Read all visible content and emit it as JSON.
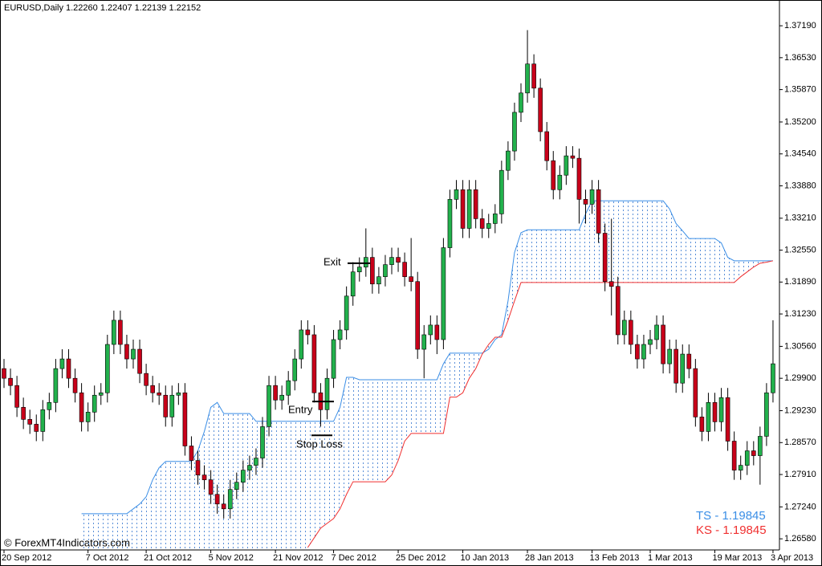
{
  "chart_data": {
    "type": "candlestick",
    "title": "EURUSD,Daily  1.22260 1.22407 1.22139 1.22152",
    "watermark": "© ForexMT4Indicators.com",
    "x": [
      "20 Sep 2012",
      null,
      null,
      null,
      null,
      null,
      null,
      null,
      null,
      null,
      null,
      null,
      null,
      "7 Oct 2012",
      null,
      null,
      null,
      null,
      null,
      null,
      null,
      null,
      "21 Oct 2012",
      null,
      null,
      null,
      null,
      null,
      null,
      null,
      null,
      null,
      "5 Nov 2012",
      null,
      null,
      null,
      null,
      null,
      null,
      null,
      null,
      null,
      "21 Nov 2012",
      null,
      null,
      null,
      null,
      null,
      null,
      null,
      null,
      "7 Dec 2012",
      null,
      null,
      null,
      null,
      null,
      null,
      null,
      null,
      null,
      "25 Dec 2012",
      null,
      null,
      null,
      null,
      null,
      null,
      null,
      null,
      null,
      "10 Jan 2013",
      null,
      null,
      null,
      null,
      null,
      null,
      null,
      null,
      null,
      "28 Jan 2013",
      null,
      null,
      null,
      null,
      null,
      null,
      null,
      null,
      null,
      "13 Feb 2013",
      null,
      null,
      null,
      null,
      null,
      null,
      null,
      null,
      "1 Mar 2013",
      null,
      null,
      null,
      null,
      null,
      null,
      null,
      null,
      null,
      "19 Mar 2013",
      null,
      null,
      null,
      null,
      null,
      null,
      null,
      null,
      "3 Apr 2013"
    ],
    "open": [
      1.301,
      1.299,
      1.2975,
      1.293,
      1.2905,
      1.2895,
      1.288,
      1.2925,
      1.294,
      1.301,
      1.303,
      1.299,
      1.296,
      1.29,
      1.292,
      1.2955,
      1.296,
      1.306,
      1.311,
      1.306,
      1.303,
      1.305,
      1.3,
      1.2975,
      1.296,
      1.2955,
      1.291,
      1.2955,
      1.296,
      1.285,
      1.282,
      1.279,
      1.278,
      1.275,
      1.273,
      1.272,
      1.276,
      1.2775,
      1.28,
      1.281,
      1.2825,
      1.289,
      1.2975,
      1.2945,
      1.2955,
      1.2985,
      1.303,
      1.309,
      1.308,
      1.296,
      1.2925,
      1.299,
      1.307,
      1.309,
      1.316,
      1.321,
      1.322,
      1.324,
      1.3185,
      1.32,
      1.3225,
      1.324,
      1.323,
      1.32,
      1.319,
      1.305,
      1.308,
      1.31,
      1.307,
      1.326,
      1.336,
      1.338,
      1.33,
      1.338,
      1.332,
      1.33,
      1.331,
      1.333,
      1.342,
      1.346,
      1.354,
      1.358,
      1.364,
      1.359,
      1.35,
      1.344,
      1.338,
      1.341,
      1.345,
      1.3445,
      1.336,
      1.335,
      1.338,
      1.329,
      1.319,
      1.318,
      1.308,
      1.311,
      1.306,
      1.303,
      1.306,
      1.307,
      1.31,
      1.302,
      1.305,
      1.298,
      1.304,
      1.301,
      1.291,
      1.288,
      1.294,
      1.29,
      1.295,
      1.286,
      1.28,
      1.281,
      1.284,
      1.283,
      1.287,
      1.296
    ],
    "high": [
      1.303,
      1.301,
      1.2995,
      1.295,
      1.2925,
      1.2915,
      1.2945,
      1.296,
      1.303,
      1.305,
      1.305,
      1.301,
      1.298,
      1.294,
      1.2975,
      1.298,
      1.308,
      1.313,
      1.313,
      1.308,
      1.307,
      1.307,
      1.302,
      1.2995,
      1.298,
      1.2975,
      1.2975,
      1.298,
      1.298,
      1.287,
      1.284,
      1.281,
      1.28,
      1.277,
      1.275,
      1.278,
      1.2795,
      1.282,
      1.283,
      1.2845,
      1.291,
      1.2995,
      1.2995,
      1.2975,
      1.3005,
      1.305,
      1.311,
      1.311,
      1.31,
      1.298,
      1.301,
      1.309,
      1.311,
      1.318,
      1.323,
      1.324,
      1.33,
      1.326,
      1.322,
      1.3245,
      1.326,
      1.326,
      1.325,
      1.328,
      1.321,
      1.31,
      1.312,
      1.312,
      1.328,
      1.338,
      1.34,
      1.34,
      1.34,
      1.34,
      1.334,
      1.333,
      1.335,
      1.344,
      1.348,
      1.356,
      1.36,
      1.371,
      1.366,
      1.361,
      1.352,
      1.346,
      1.343,
      1.347,
      1.347,
      1.3465,
      1.338,
      1.34,
      1.34,
      1.331,
      1.332,
      1.32,
      1.313,
      1.313,
      1.308,
      1.308,
      1.309,
      1.312,
      1.312,
      1.307,
      1.307,
      1.306,
      1.306,
      1.303,
      1.293,
      1.296,
      1.296,
      1.297,
      1.297,
      1.288,
      1.283,
      1.286,
      1.286,
      1.289,
      1.298,
      1.311
    ],
    "low": [
      1.297,
      1.2955,
      1.291,
      1.2885,
      1.2875,
      1.286,
      1.286,
      1.2905,
      1.292,
      1.299,
      1.297,
      1.294,
      1.288,
      1.288,
      1.29,
      1.2935,
      1.294,
      1.304,
      1.304,
      1.301,
      1.301,
      1.298,
      1.2955,
      1.294,
      1.2935,
      1.289,
      1.289,
      1.2935,
      1.283,
      1.28,
      1.277,
      1.276,
      1.273,
      1.271,
      1.27,
      1.27,
      1.274,
      1.2755,
      1.278,
      1.279,
      1.2805,
      1.287,
      1.2925,
      1.2925,
      1.2935,
      1.2965,
      1.301,
      1.306,
      1.294,
      1.289,
      1.2905,
      1.297,
      1.305,
      1.307,
      1.314,
      1.319,
      1.32,
      1.3165,
      1.3165,
      1.318,
      1.3205,
      1.321,
      1.318,
      1.317,
      1.303,
      1.299,
      1.306,
      1.304,
      1.305,
      1.324,
      1.334,
      1.328,
      1.328,
      1.33,
      1.328,
      1.328,
      1.329,
      1.331,
      1.34,
      1.344,
      1.352,
      1.356,
      1.357,
      1.348,
      1.342,
      1.336,
      1.336,
      1.339,
      1.3425,
      1.331,
      1.331,
      1.333,
      1.327,
      1.317,
      1.312,
      1.306,
      1.306,
      1.304,
      1.301,
      1.301,
      1.304,
      1.305,
      1.3,
      1.3,
      1.296,
      1.296,
      1.299,
      1.289,
      1.286,
      1.286,
      1.288,
      1.288,
      1.284,
      1.278,
      1.278,
      1.279,
      1.281,
      1.277,
      1.285,
      1.294
    ],
    "close": [
      1.299,
      1.2975,
      1.293,
      1.2905,
      1.2895,
      1.288,
      1.2925,
      1.294,
      1.301,
      1.303,
      1.299,
      1.296,
      1.29,
      1.292,
      1.2955,
      1.296,
      1.306,
      1.311,
      1.306,
      1.303,
      1.305,
      1.3,
      1.2975,
      1.296,
      1.2955,
      1.291,
      1.2955,
      1.296,
      1.285,
      1.282,
      1.279,
      1.278,
      1.275,
      1.273,
      1.272,
      1.276,
      1.2775,
      1.28,
      1.281,
      1.2825,
      1.289,
      1.2975,
      1.2945,
      1.2955,
      1.2985,
      1.303,
      1.309,
      1.308,
      1.296,
      1.2925,
      1.299,
      1.307,
      1.309,
      1.316,
      1.321,
      1.322,
      1.324,
      1.3185,
      1.32,
      1.3225,
      1.324,
      1.323,
      1.32,
      1.319,
      1.305,
      1.308,
      1.31,
      1.307,
      1.326,
      1.336,
      1.338,
      1.33,
      1.338,
      1.332,
      1.33,
      1.331,
      1.333,
      1.342,
      1.346,
      1.354,
      1.358,
      1.364,
      1.359,
      1.35,
      1.344,
      1.338,
      1.341,
      1.345,
      1.3445,
      1.336,
      1.335,
      1.338,
      1.329,
      1.319,
      1.318,
      1.308,
      1.311,
      1.306,
      1.303,
      1.306,
      1.307,
      1.31,
      1.302,
      1.305,
      1.298,
      1.304,
      1.301,
      1.291,
      1.288,
      1.294,
      1.29,
      1.295,
      1.286,
      1.28,
      1.281,
      1.284,
      1.283,
      1.287,
      1.296,
      1.302
    ],
    "up_color": "#22b14c",
    "down_color": "#c8001a",
    "series": [
      {
        "color": "#3a8ee6",
        "values": [
          null,
          null,
          null,
          null,
          null,
          null,
          null,
          null,
          null,
          null,
          null,
          null,
          1.271,
          1.271,
          1.271,
          1.271,
          1.271,
          1.271,
          1.271,
          1.271,
          1.272,
          1.273,
          1.2745,
          1.278,
          1.2805,
          1.2818,
          1.2818,
          1.2818,
          1.2818,
          1.2818,
          1.284,
          1.288,
          1.293,
          1.294,
          1.2917,
          1.2917,
          1.2917,
          1.2917,
          1.2917,
          1.2901,
          1.2901,
          1.2901,
          1.2901,
          1.2901,
          1.2901,
          1.2901,
          1.2901,
          1.2901,
          1.2901,
          1.2901,
          1.2901,
          1.2901,
          1.293,
          1.2992,
          1.2992,
          1.2987,
          1.2987,
          1.2987,
          1.2987,
          1.2987,
          1.2987,
          1.2987,
          1.2987,
          1.2987,
          1.2987,
          1.2987,
          1.2987,
          1.2987,
          1.302,
          1.3042,
          1.3042,
          1.3042,
          1.3042,
          1.3042,
          1.3042,
          1.305,
          1.307,
          1.308,
          1.315,
          1.325,
          1.3291,
          1.3297,
          1.3297,
          1.3297,
          1.3297,
          1.3297,
          1.3297,
          1.3297,
          1.3297,
          1.3297,
          1.333,
          1.3357,
          1.3357,
          1.3357,
          1.3357,
          1.3357,
          1.3357,
          1.3357,
          1.3357,
          1.3357,
          1.3357,
          1.3357,
          1.3357,
          1.334,
          1.331,
          1.3295,
          1.3279,
          1.3279,
          1.3279,
          1.3279,
          1.3279,
          1.327,
          1.324,
          1.3233,
          1.3233,
          1.3233,
          1.3233,
          1.3233,
          1.3233,
          1.3233
        ]
      },
      {
        "color": "#f03030",
        "values": [
          null,
          null,
          null,
          null,
          null,
          null,
          null,
          null,
          null,
          null,
          null,
          null,
          null,
          null,
          null,
          null,
          null,
          null,
          null,
          null,
          null,
          null,
          null,
          null,
          null,
          null,
          null,
          null,
          null,
          null,
          null,
          null,
          null,
          null,
          null,
          null,
          null,
          null,
          null,
          null,
          null,
          null,
          null,
          null,
          null,
          null,
          null,
          1.264,
          1.266,
          1.268,
          1.269,
          1.27,
          1.272,
          1.275,
          1.2776,
          1.2776,
          1.2776,
          1.2776,
          1.2776,
          1.2776,
          1.279,
          1.282,
          1.286,
          1.2876,
          1.2876,
          1.2876,
          1.2876,
          1.2876,
          1.2876,
          1.2951,
          1.2951,
          1.296,
          1.299,
          1.301,
          1.304,
          1.306,
          1.3075,
          1.3075,
          1.311,
          1.315,
          1.3188,
          1.3188,
          1.3188,
          1.3188,
          1.3188,
          1.3188,
          1.3188,
          1.3188,
          1.3188,
          1.3188,
          1.3188,
          1.3188,
          1.3188,
          1.3188,
          1.3188,
          1.3188,
          1.3188,
          1.3188,
          1.3188,
          1.3188,
          1.3188,
          1.3188,
          1.3188,
          1.3188,
          1.3188,
          1.3188,
          1.3188,
          1.3188,
          1.3188,
          1.3188,
          1.3188,
          1.3188,
          1.3188,
          1.3188,
          1.32,
          1.321,
          1.322,
          1.3228,
          1.323,
          1.3233
        ]
      }
    ],
    "ylim": [
      1.2635,
      1.3759
    ],
    "yticks": [
      {
        "value": 1.3719,
        "label": "1.37190"
      },
      {
        "value": 1.3653,
        "label": "1.36530"
      },
      {
        "value": 1.3587,
        "label": "1.35870"
      },
      {
        "value": 1.352,
        "label": "1.35200"
      },
      {
        "value": 1.3454,
        "label": "1.34540"
      },
      {
        "value": 1.3388,
        "label": "1.33880"
      },
      {
        "value": 1.3321,
        "label": "1.33210"
      },
      {
        "value": 1.3255,
        "label": "1.32550"
      },
      {
        "value": 1.3189,
        "label": "1.31890"
      },
      {
        "value": 1.3123,
        "label": "1.31230"
      },
      {
        "value": 1.3056,
        "label": "1.30560"
      },
      {
        "value": 1.299,
        "label": "1.29900"
      },
      {
        "value": 1.2923,
        "label": "1.29230"
      },
      {
        "value": 1.2857,
        "label": "1.28570"
      },
      {
        "value": 1.2791,
        "label": "1.27910"
      },
      {
        "value": 1.2724,
        "label": "1.27240"
      },
      {
        "value": 1.2658,
        "label": "1.26580"
      }
    ],
    "annotations": [
      {
        "text": "Exit",
        "value": 1.3228
      },
      {
        "text": "Entry",
        "value": 1.2942
      },
      {
        "text": "Stop Loss",
        "value": 1.2872
      }
    ],
    "status_labels": [
      {
        "text": "TS - 1.19845",
        "color": "#3a8ee6"
      },
      {
        "text": "KS - 1.19845",
        "color": "#f03030"
      }
    ]
  }
}
